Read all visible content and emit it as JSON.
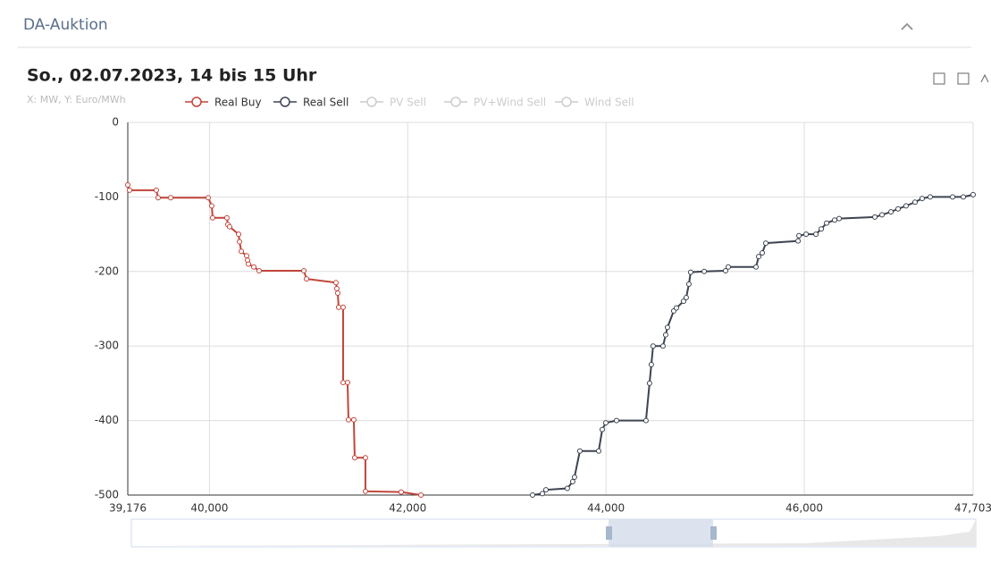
{
  "panel": {
    "title": "DA-Auktion"
  },
  "chart_data": {
    "type": "line",
    "title": "So., 02.07.2023, 14 bis 15 Uhr",
    "subtitle": "X: MW, Y: Euro/MWh",
    "xlim": [
      39176,
      47703
    ],
    "xticks": [
      {
        "value": 39176,
        "label": "39,176"
      },
      {
        "value": 40000,
        "label": "40,000"
      },
      {
        "value": 42000,
        "label": "42,000"
      },
      {
        "value": 44000,
        "label": "44,000"
      },
      {
        "value": 46000,
        "label": "46,000"
      },
      {
        "value": 47703,
        "label": "47,703"
      }
    ],
    "ylim": [
      -500,
      0
    ],
    "yticks": [
      0,
      -100,
      -200,
      -300,
      -400,
      -500
    ],
    "grid": true,
    "series": [
      {
        "name": "Real Buy",
        "color": "#c0453a",
        "x": [
          39176,
          39194,
          39464,
          39482,
          39609,
          39987,
          40023,
          40032,
          40176,
          40185,
          40203,
          40294,
          40303,
          40321,
          40375,
          40384,
          40393,
          40447,
          40501,
          40952,
          40979,
          41276,
          41285,
          41294,
          41303,
          41348,
          41348,
          41393,
          41402,
          41456,
          41465,
          41573,
          41573,
          41934,
          42133
        ],
        "values": [
          -84,
          -91,
          -91,
          -101,
          -101,
          -101,
          -112,
          -128,
          -128,
          -137,
          -140,
          -150,
          -160,
          -173,
          -179,
          -185,
          -190,
          -194,
          -199,
          -199,
          -210,
          -215,
          -223,
          -229,
          -248,
          -248,
          -349,
          -349,
          -399,
          -399,
          -450,
          -450,
          -495,
          -496,
          -500
        ]
      },
      {
        "name": "Real Sell",
        "color": "#3d4450",
        "x": [
          43259,
          43358,
          43394,
          43610,
          43664,
          43682,
          43736,
          43926,
          43962,
          43998,
          44106,
          44403,
          44439,
          44457,
          44475,
          44575,
          44602,
          44620,
          44683,
          44710,
          44782,
          44809,
          44836,
          44854,
          44990,
          45206,
          45233,
          45513,
          45540,
          45576,
          45612,
          45937,
          45946,
          46018,
          46117,
          46171,
          46225,
          46306,
          46351,
          46712,
          46784,
          46874,
          46946,
          47027,
          47117,
          47189,
          47270,
          47496,
          47604,
          47703
        ],
        "values": [
          -500,
          -498,
          -493,
          -491,
          -482,
          -476,
          -441,
          -441,
          -412,
          -403,
          -400,
          -400,
          -350,
          -325,
          -300,
          -300,
          -285,
          -275,
          -253,
          -249,
          -240,
          -235,
          -217,
          -201,
          -200,
          -199,
          -194,
          -194,
          -180,
          -175,
          -162,
          -159,
          -152,
          -150,
          -150,
          -143,
          -135,
          -131,
          -129,
          -127,
          -124,
          -120,
          -116,
          -112,
          -107,
          -102,
          -100,
          -100,
          -100,
          -97
        ]
      },
      {
        "name": "PV Sell",
        "color": "#cccccc",
        "hidden": true,
        "x": [],
        "values": []
      },
      {
        "name": "PV+Wind Sell",
        "color": "#cccccc",
        "hidden": true,
        "x": [],
        "values": []
      },
      {
        "name": "Wind Sell",
        "color": "#cccccc",
        "hidden": true,
        "x": [],
        "values": []
      }
    ]
  }
}
